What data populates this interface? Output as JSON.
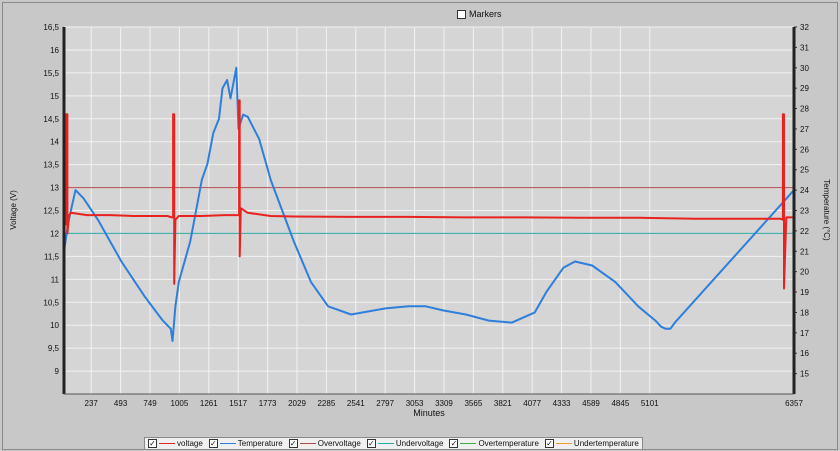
{
  "markers": {
    "label": "Markers",
    "checked": false
  },
  "legend": [
    {
      "label": "voltage",
      "color": "#e8231f",
      "checked": true
    },
    {
      "label": "Temperature",
      "color": "#2e7fdc",
      "checked": true
    },
    {
      "label": "Overvoltage",
      "color": "#b04a4a",
      "checked": true
    },
    {
      "label": "Undervoltage",
      "color": "#2aa8a8",
      "checked": true
    },
    {
      "label": "Overtemperature",
      "color": "#3cb043",
      "checked": true
    },
    {
      "label": "Undertemperature",
      "color": "#f0a030",
      "checked": true
    }
  ],
  "chart_data": {
    "type": "line",
    "xlabel": "Minutes",
    "ylabel": "Voltage (V)",
    "y2label": "Temperature (°C)",
    "xlim": [
      0,
      6357
    ],
    "ylim": [
      8.5,
      16.5
    ],
    "y2lim": [
      14,
      32
    ],
    "x_ticks": [
      "237",
      "493",
      "749",
      "1005",
      "1261",
      "1517",
      "1773",
      "2029",
      "2285",
      "2541",
      "2797",
      "3053",
      "3309",
      "3565",
      "3821",
      "4077",
      "4333",
      "4589",
      "4845",
      "5101",
      "6357"
    ],
    "y_ticks": [
      "9",
      "9,5",
      "10",
      "10,5",
      "11",
      "11,5",
      "12",
      "12,5",
      "13",
      "13,5",
      "14",
      "14,5",
      "15",
      "15,5",
      "16",
      "16,5"
    ],
    "y2_ticks": [
      "15",
      "16",
      "17",
      "18",
      "19",
      "20",
      "21",
      "22",
      "23",
      "24",
      "25",
      "26",
      "27",
      "28",
      "29",
      "30",
      "31",
      "32"
    ],
    "grid": true,
    "series": [
      {
        "name": "voltage",
        "axis": "left",
        "x": [
          0,
          20,
          20,
          30,
          30,
          45,
          60,
          200,
          400,
          600,
          900,
          940,
          950,
          950,
          960,
          960,
          970,
          1000,
          1200,
          1400,
          1520,
          1525,
          1525,
          1530,
          1530,
          1540,
          1600,
          1800,
          2000,
          2500,
          3000,
          3500,
          4000,
          4500,
          5000,
          5500,
          6240,
          6260,
          6260,
          6270,
          6270,
          6290,
          6357
        ],
        "values": [
          12.2,
          12.2,
          14.6,
          14.6,
          12.0,
          12.4,
          12.45,
          12.4,
          12.4,
          12.38,
          12.38,
          12.35,
          12.35,
          14.6,
          14.6,
          10.9,
          12.3,
          12.38,
          12.38,
          12.4,
          12.4,
          12.4,
          14.9,
          14.9,
          11.5,
          12.55,
          12.45,
          12.38,
          12.37,
          12.36,
          12.36,
          12.35,
          12.35,
          12.34,
          12.34,
          12.32,
          12.32,
          12.3,
          14.6,
          14.6,
          10.8,
          12.35,
          12.35
        ]
      },
      {
        "name": "Temperature",
        "axis": "right",
        "x": [
          0,
          40,
          100,
          170,
          300,
          500,
          700,
          860,
          930,
          945,
          970,
          1000,
          1050,
          1100,
          1150,
          1200,
          1250,
          1300,
          1350,
          1380,
          1420,
          1450,
          1500,
          1520,
          1560,
          1600,
          1700,
          1800,
          2000,
          2150,
          2300,
          2500,
          2800,
          3000,
          3150,
          3300,
          3500,
          3700,
          3900,
          4100,
          4200,
          4350,
          4450,
          4600,
          4800,
          5000,
          5150,
          5200,
          5240,
          5280,
          5320,
          6357
        ],
        "values": [
          21.0,
          22.5,
          24.0,
          23.6,
          22.5,
          20.5,
          18.8,
          17.6,
          17.2,
          16.6,
          18.3,
          19.5,
          20.5,
          21.5,
          23.0,
          24.5,
          25.3,
          26.8,
          27.5,
          29.0,
          29.4,
          28.5,
          30.0,
          27.0,
          27.7,
          27.6,
          26.5,
          24.5,
          21.5,
          19.5,
          18.3,
          17.9,
          18.2,
          18.3,
          18.3,
          18.1,
          17.9,
          17.6,
          17.5,
          18.0,
          19.0,
          20.2,
          20.5,
          20.3,
          19.5,
          18.3,
          17.6,
          17.3,
          17.2,
          17.2,
          17.5,
          24.0
        ]
      },
      {
        "name": "Overvoltage",
        "axis": "left",
        "x": [
          0,
          6357
        ],
        "values": [
          13.0,
          13.0
        ]
      },
      {
        "name": "Undervoltage",
        "axis": "left",
        "x": [
          0,
          6357
        ],
        "values": [
          12.0,
          12.0
        ]
      }
    ]
  }
}
